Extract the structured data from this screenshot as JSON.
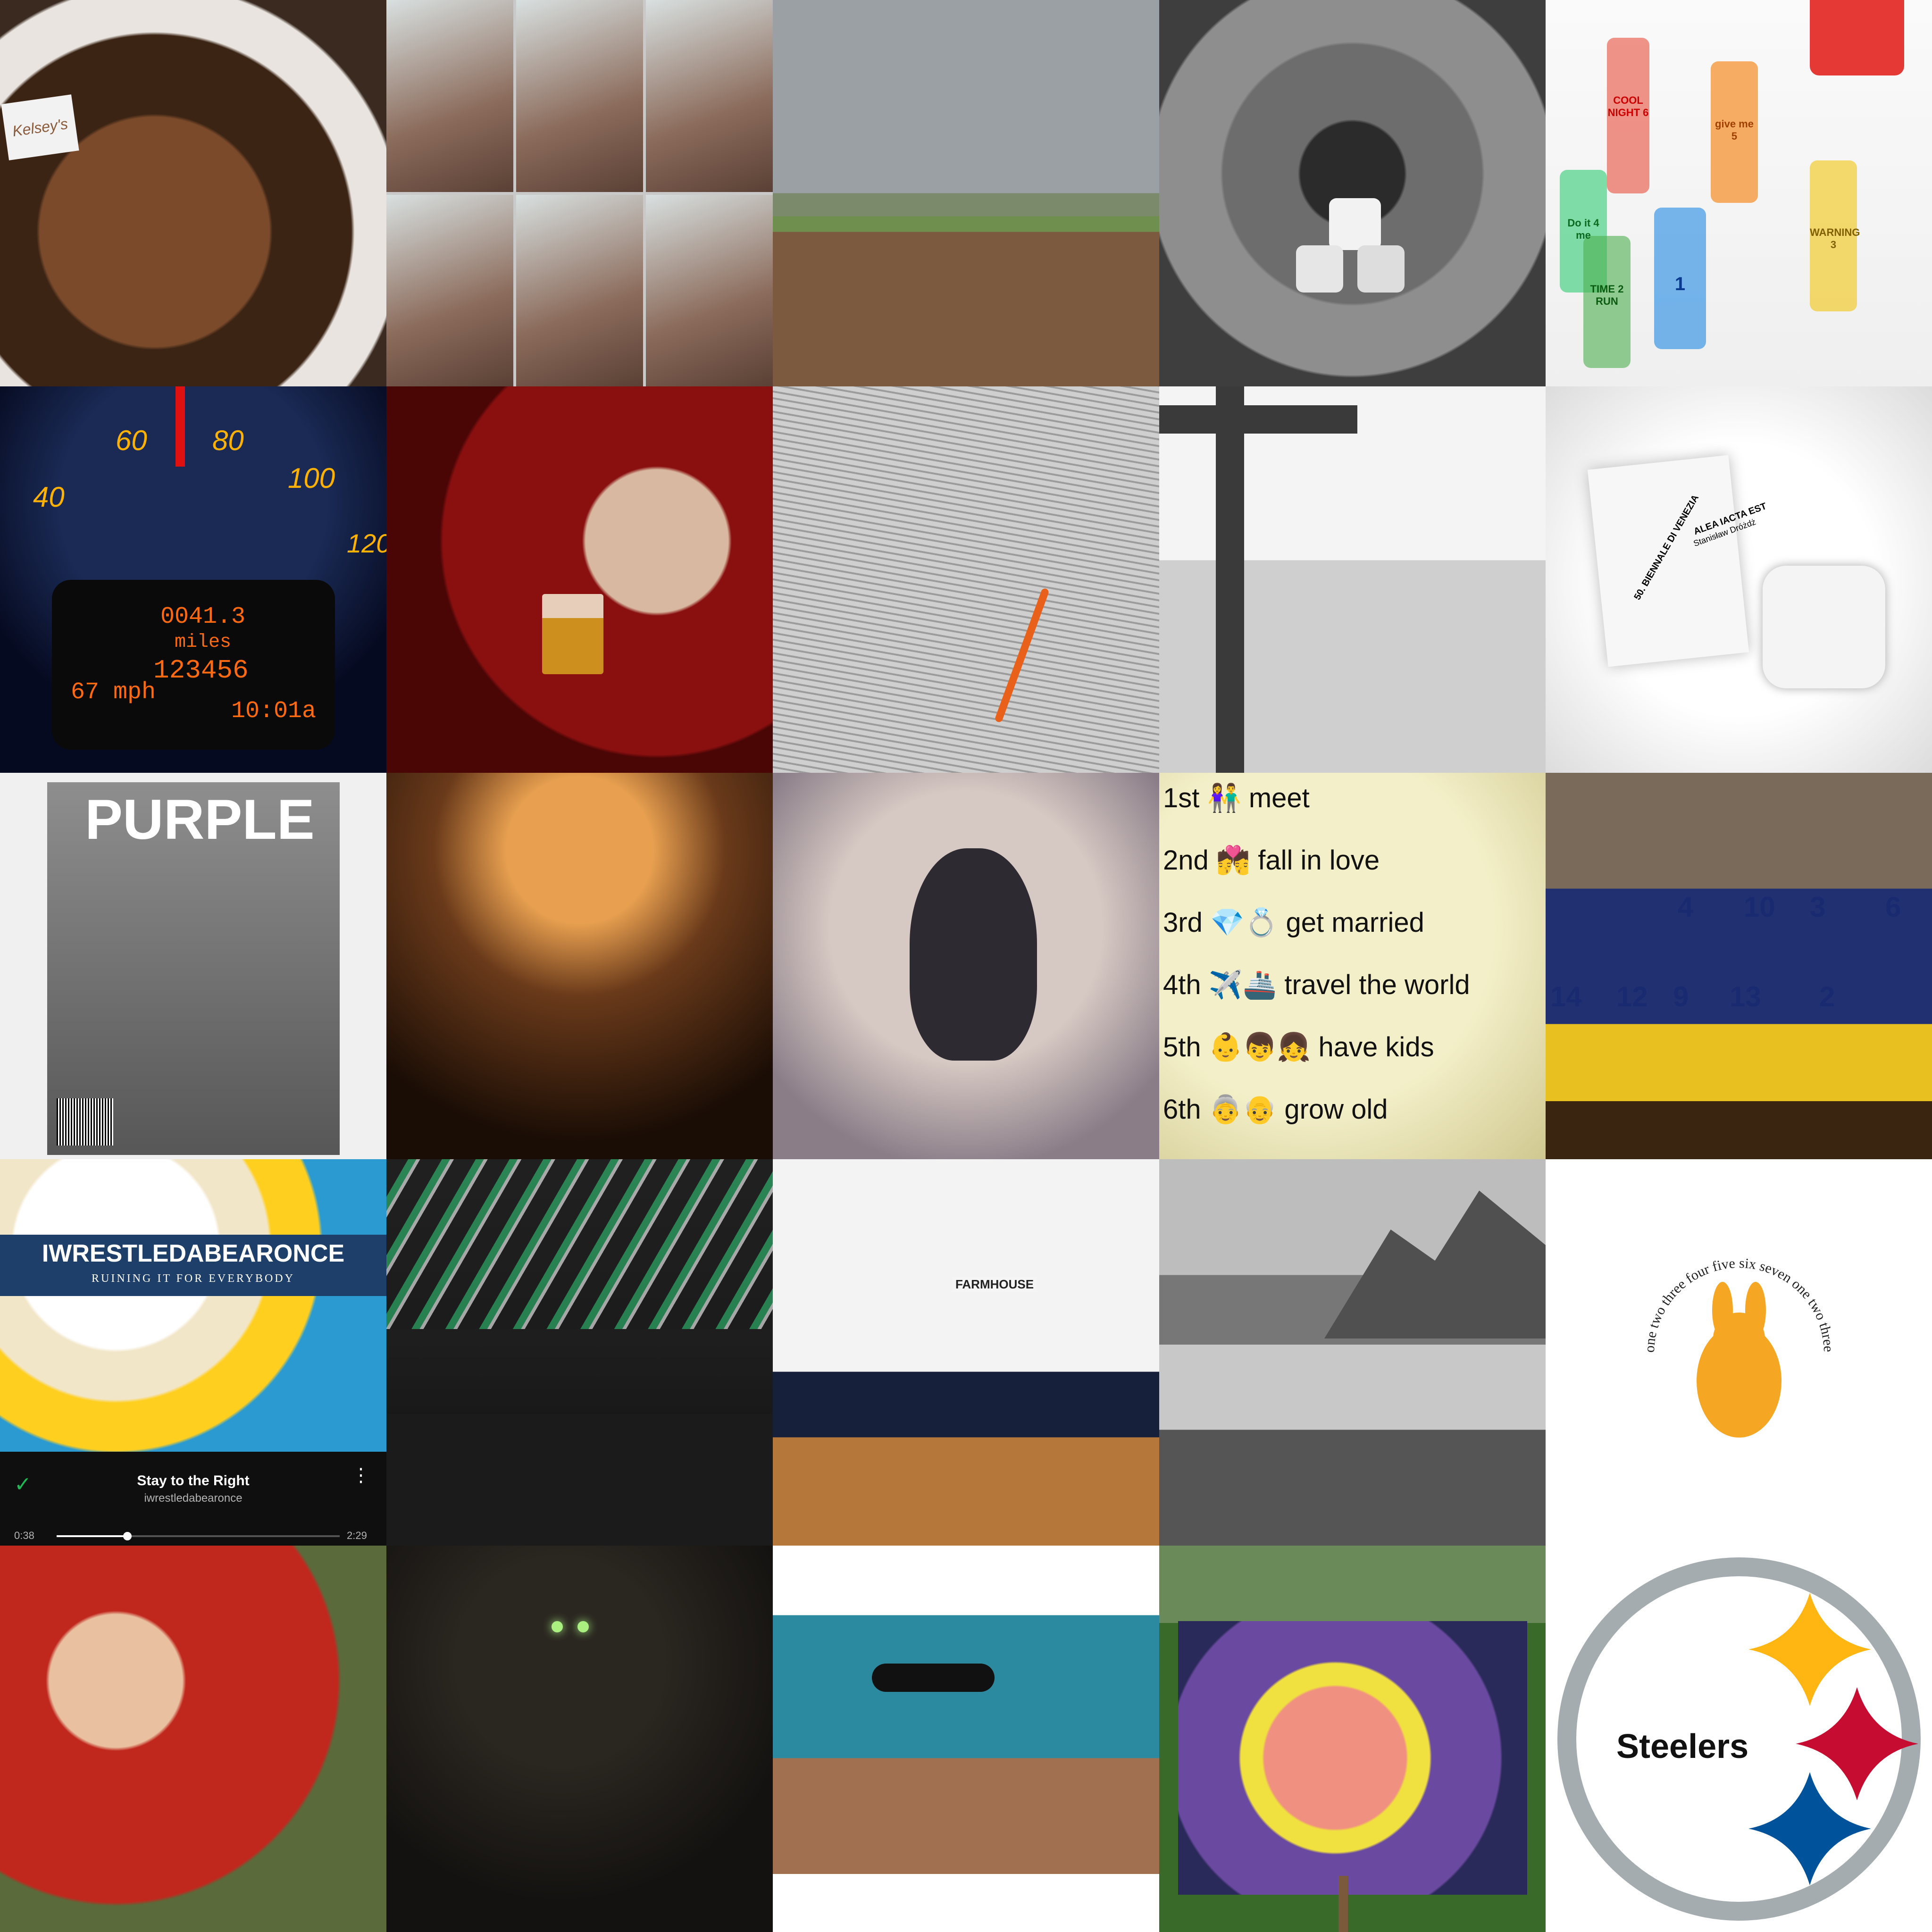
{
  "tiles": {
    "food": {
      "sign": "Kelsey's"
    },
    "speedometer": {
      "ticks": [
        "40",
        "60",
        "80",
        "100",
        "120"
      ],
      "trip": "0041.3",
      "trip_unit": "miles",
      "odometer": "123456",
      "speed": "67 mph",
      "time": "10:01a"
    },
    "shot_glasses": {
      "labels": [
        "COOL NIGHT 6",
        "give me 5",
        "Do it 4 me",
        "TIME 2 RUN",
        "1",
        "WARNING 3"
      ]
    },
    "dice_box": {
      "note_title": "ALEA IACTA EST",
      "note_author": "Stanisław Dróżdż",
      "note_event": "50. BIENNALE DI VENEZIA"
    },
    "magazine": {
      "title": "PURPLE"
    },
    "emoji_list": {
      "lines": [
        {
          "ord": "1st",
          "emoji": "👫",
          "text": "meet"
        },
        {
          "ord": "2nd",
          "emoji": "💏",
          "text": "fall in love"
        },
        {
          "ord": "3rd",
          "emoji": "💎💍",
          "text": "get married"
        },
        {
          "ord": "4th",
          "emoji": "✈️🚢",
          "text": "travel the world"
        },
        {
          "ord": "5th",
          "emoji": "👶👦👧",
          "text": "have kids"
        },
        {
          "ord": "6th",
          "emoji": "👵👴",
          "text": "grow old"
        }
      ]
    },
    "team": {
      "numbers": [
        "4",
        "10",
        "3",
        "6",
        "14",
        "12",
        "9",
        "13",
        "2"
      ]
    },
    "album": {
      "band": "IWRESTLEDABEARONCE",
      "subtitle": "RUINING IT FOR EVERYBODY",
      "track": "Stay to the Right",
      "artist": "iwrestledabearonce",
      "elapsed": "0:38",
      "duration": "2:29",
      "progress": 0.25
    },
    "kitchen": {
      "sign": "FARMHOUSE"
    },
    "bunny": {
      "ring_text": "one two three four five six seven one two three four"
    },
    "steelers": {
      "wordmark": "Steelers"
    }
  },
  "colors": {
    "spotify_green": "#1db954",
    "steelers_yellow": "#ffb612",
    "steelers_red": "#c60c30",
    "steelers_blue": "#00539b",
    "dash_amber": "#ffb100"
  }
}
